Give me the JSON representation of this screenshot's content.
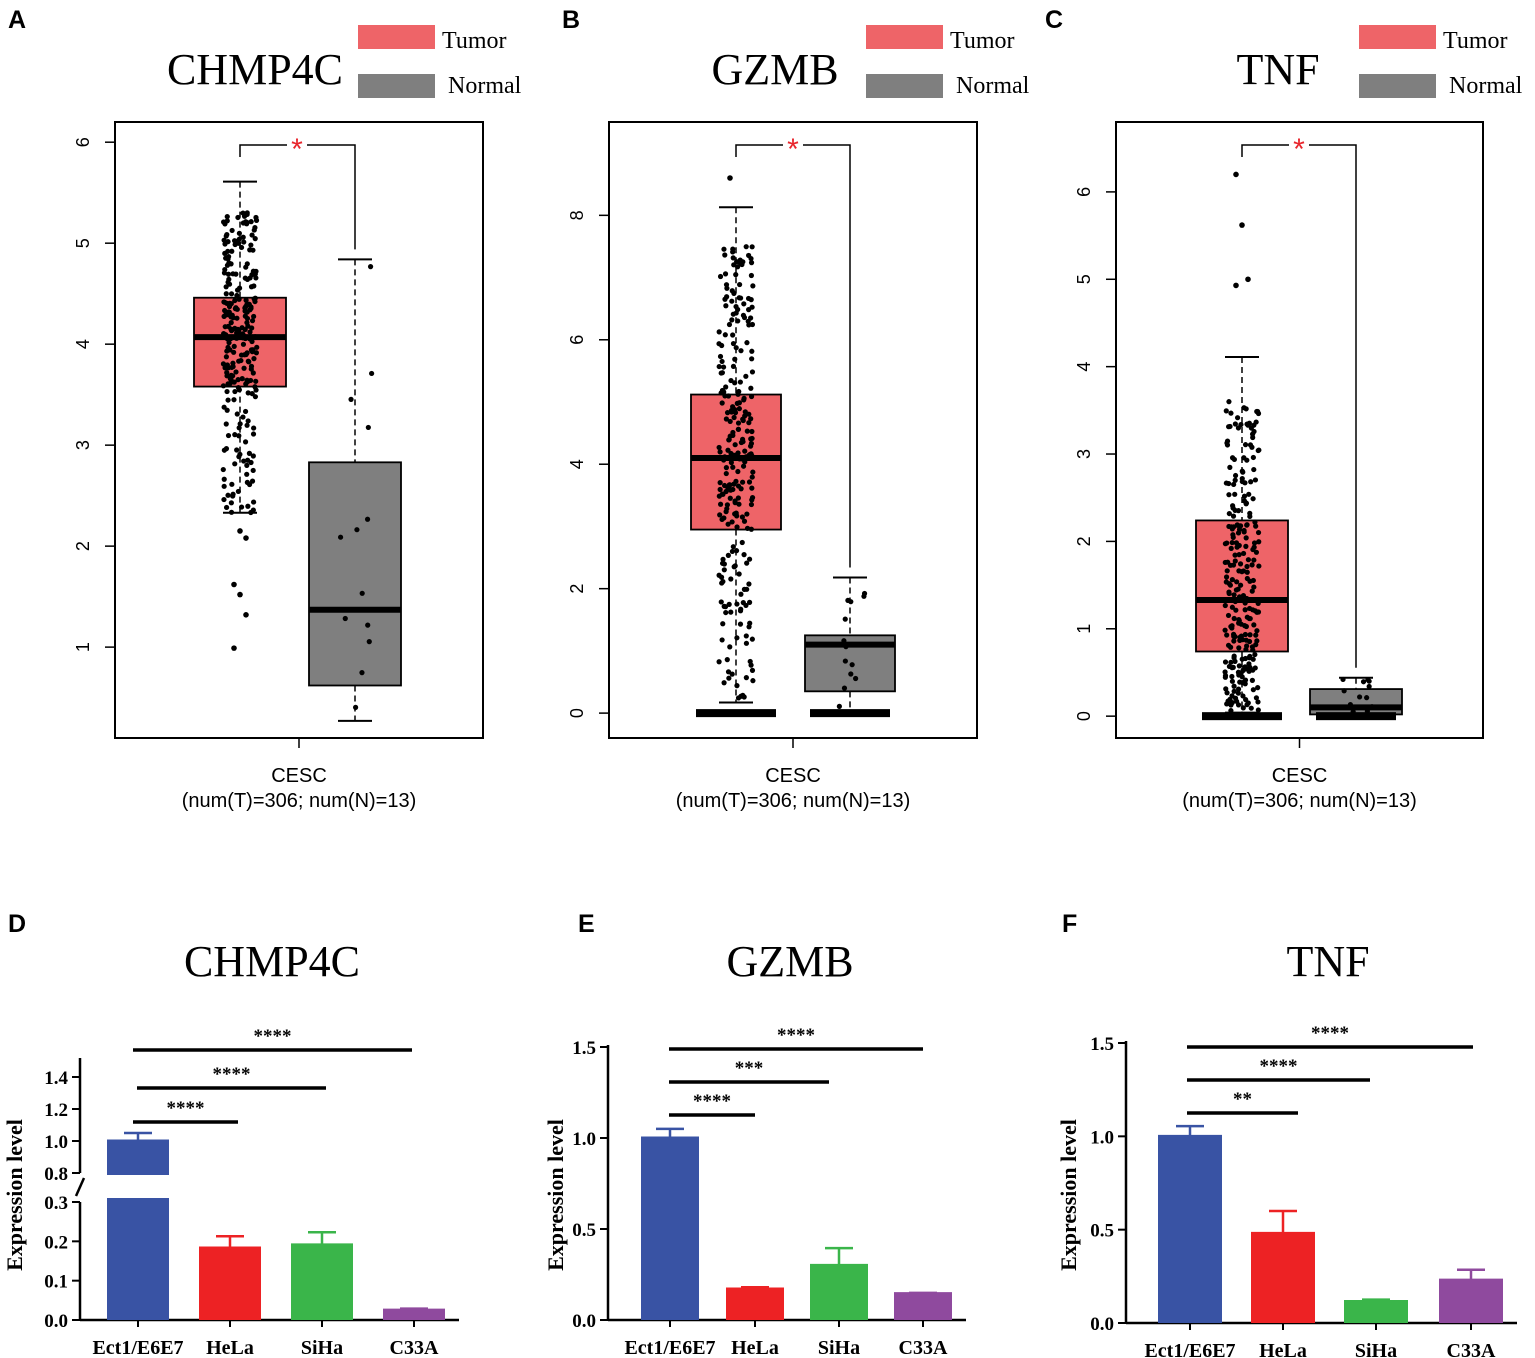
{
  "colors": {
    "tumor": "#ee6468",
    "normal": "#7f7f7f",
    "star": "#e8262d",
    "bar_colors": [
      "#3953a4",
      "#ed2224",
      "#3ab54a",
      "#8f4a9e"
    ]
  },
  "panels": {
    "A": "A",
    "B": "B",
    "C": "C",
    "D": "D",
    "E": "E",
    "F": "F"
  },
  "chart_data": [
    {
      "panel": "A",
      "type": "box",
      "title": "CHMP4C",
      "legend": [
        "Tumor",
        "Normal"
      ],
      "xlabel": "CESC",
      "xsublabel": "(num(T)=306; num(N)=13)",
      "ylim": [
        0.1,
        6.2
      ],
      "yticks": [
        "1",
        "2",
        "3",
        "4",
        "5",
        "6"
      ],
      "significance": "*",
      "tumor": {
        "min": 2.33,
        "q1": 3.58,
        "median": 4.07,
        "q3": 4.46,
        "max": 5.61
      },
      "normal": {
        "min": 0.27,
        "q1": 0.62,
        "median": 1.37,
        "q3": 2.83,
        "max": 4.84
      }
    },
    {
      "panel": "B",
      "type": "box",
      "title": "GZMB",
      "legend": [
        "Tumor",
        "Normal"
      ],
      "xlabel": "CESC",
      "xsublabel": "(num(T)=306; num(N)=13)",
      "ylim": [
        -0.4,
        9.5
      ],
      "yticks": [
        "0",
        "2",
        "4",
        "6",
        "8"
      ],
      "significance": "*",
      "tumor": {
        "min": 0.17,
        "q1": 2.95,
        "median": 4.1,
        "q3": 5.12,
        "max": 8.13
      },
      "normal": {
        "min": 0.0,
        "q1": 0.35,
        "median": 1.1,
        "q3": 1.25,
        "max": 2.18
      }
    },
    {
      "panel": "C",
      "type": "box",
      "title": "TNF",
      "legend": [
        "Tumor",
        "Normal"
      ],
      "xlabel": "CESC",
      "xsublabel": "(num(T)=306; num(N)=13)",
      "ylim": [
        -0.25,
        6.8
      ],
      "yticks": [
        "0",
        "1",
        "2",
        "3",
        "4",
        "5",
        "6"
      ],
      "significance": "*",
      "tumor": {
        "min": 0.04,
        "q1": 0.74,
        "median": 1.33,
        "q3": 2.24,
        "max": 4.11
      },
      "normal": {
        "min": 0.0,
        "q1": 0.02,
        "median": 0.1,
        "q3": 0.31,
        "max": 0.44
      }
    },
    {
      "panel": "D",
      "type": "bar",
      "title": "CHMP4C",
      "ylabel": "Expression level",
      "categories": [
        "Ect1/E6E7",
        "HeLa",
        "SiHa",
        "C33A"
      ],
      "values": [
        1.0,
        0.183,
        0.191,
        0.025
      ],
      "errors": [
        0.05,
        0.03,
        0.032,
        0.004
      ],
      "axis_break": {
        "lower": [
          0,
          0.3
        ],
        "upper": [
          0.8,
          1.4
        ]
      },
      "yticks_lower": [
        "0.0",
        "0.1",
        "0.2",
        "0.3"
      ],
      "yticks_upper": [
        "0.8",
        "1.0",
        "1.2",
        "1.4"
      ],
      "comparisons": [
        {
          "from": "Ect1/E6E7",
          "to": "HeLa",
          "label": "****"
        },
        {
          "from": "Ect1/E6E7",
          "to": "SiHa",
          "label": "****"
        },
        {
          "from": "Ect1/E6E7",
          "to": "C33A",
          "label": "****"
        }
      ]
    },
    {
      "panel": "E",
      "type": "bar",
      "title": "GZMB",
      "ylabel": "Expression level",
      "categories": [
        "Ect1/E6E7",
        "HeLa",
        "SiHa",
        "C33A"
      ],
      "values": [
        1.0,
        0.17,
        0.3,
        0.145
      ],
      "errors": [
        0.05,
        0.01,
        0.095,
        0.004
      ],
      "ylim": [
        0,
        1.5
      ],
      "yticks": [
        "0.0",
        "0.5",
        "1.0",
        "1.5"
      ],
      "comparisons": [
        {
          "from": "Ect1/E6E7",
          "to": "HeLa",
          "label": "****"
        },
        {
          "from": "Ect1/E6E7",
          "to": "SiHa",
          "label": "***"
        },
        {
          "from": "Ect1/E6E7",
          "to": "C33A",
          "label": "****"
        }
      ]
    },
    {
      "panel": "F",
      "type": "bar",
      "title": "TNF",
      "ylabel": "Expression level",
      "categories": [
        "Ect1/E6E7",
        "HeLa",
        "SiHa",
        "C33A"
      ],
      "values": [
        1.0,
        0.48,
        0.115,
        0.23
      ],
      "errors": [
        0.055,
        0.12,
        0.01,
        0.055
      ],
      "ylim": [
        0,
        1.5
      ],
      "yticks": [
        "0.0",
        "0.5",
        "1.0",
        "1.5"
      ],
      "comparisons": [
        {
          "from": "Ect1/E6E7",
          "to": "HeLa",
          "label": "**"
        },
        {
          "from": "Ect1/E6E7",
          "to": "SiHa",
          "label": "****"
        },
        {
          "from": "Ect1/E6E7",
          "to": "C33A",
          "label": "****"
        }
      ]
    }
  ]
}
